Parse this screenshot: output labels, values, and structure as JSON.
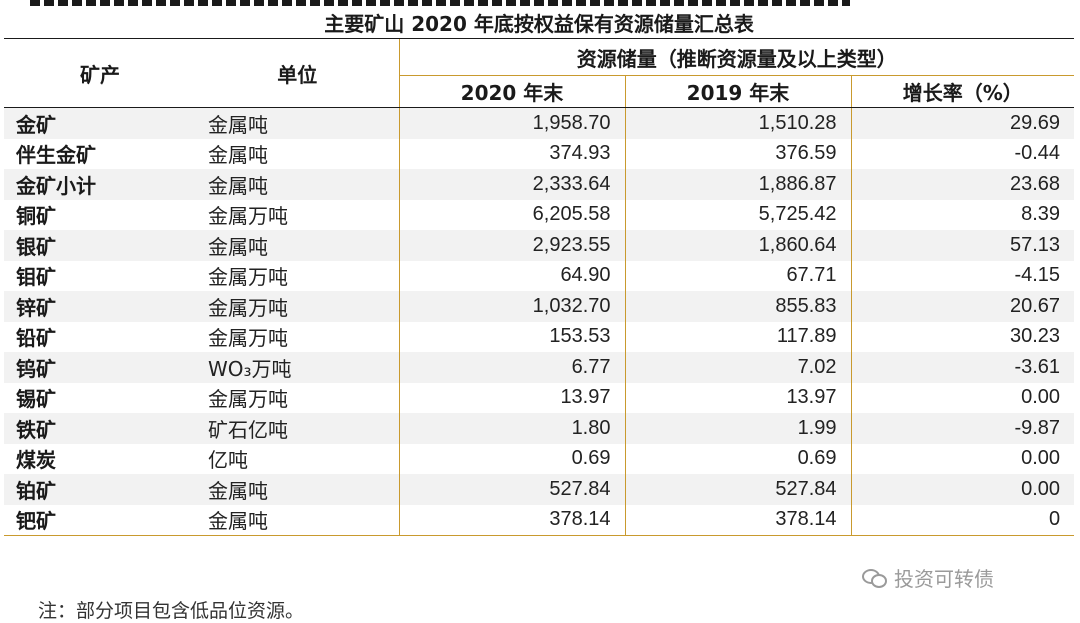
{
  "title": "主要矿山 2020 年底按权益保有资源储量汇总表",
  "header": {
    "product": "矿产",
    "unit": "单位",
    "group": "资源储量（推断资源量及以上类型）",
    "y2020": "2020 年末",
    "y2019": "2019 年末",
    "growth": "增长率（%）"
  },
  "rows": [
    {
      "product": "金矿",
      "unit": "金属吨",
      "v2020": "1,958.70",
      "v2019": "1,510.28",
      "growth": "29.69"
    },
    {
      "product": "伴生金矿",
      "unit": "金属吨",
      "v2020": "374.93",
      "v2019": "376.59",
      "growth": "-0.44"
    },
    {
      "product": "金矿小计",
      "unit": "金属吨",
      "v2020": "2,333.64",
      "v2019": "1,886.87",
      "growth": "23.68"
    },
    {
      "product": "铜矿",
      "unit": "金属万吨",
      "v2020": "6,205.58",
      "v2019": "5,725.42",
      "growth": "8.39"
    },
    {
      "product": "银矿",
      "unit": "金属吨",
      "v2020": "2,923.55",
      "v2019": "1,860.64",
      "growth": "57.13"
    },
    {
      "product": "钼矿",
      "unit": "金属万吨",
      "v2020": "64.90",
      "v2019": "67.71",
      "growth": "-4.15"
    },
    {
      "product": "锌矿",
      "unit": "金属万吨",
      "v2020": "1,032.70",
      "v2019": "855.83",
      "growth": "20.67"
    },
    {
      "product": "铅矿",
      "unit": "金属万吨",
      "v2020": "153.53",
      "v2019": "117.89",
      "growth": "30.23"
    },
    {
      "product": "钨矿",
      "unit": "WO₃万吨",
      "v2020": "6.77",
      "v2019": "7.02",
      "growth": "-3.61"
    },
    {
      "product": "锡矿",
      "unit": "金属万吨",
      "v2020": "13.97",
      "v2019": "13.97",
      "growth": "0.00"
    },
    {
      "product": "铁矿",
      "unit": "矿石亿吨",
      "v2020": "1.80",
      "v2019": "1.99",
      "growth": "-9.87"
    },
    {
      "product": "煤炭",
      "unit": "亿吨",
      "v2020": "0.69",
      "v2019": "0.69",
      "growth": "0.00"
    },
    {
      "product": "铂矿",
      "unit": "金属吨",
      "v2020": "527.84",
      "v2019": "527.84",
      "growth": "0.00"
    },
    {
      "product": "钯矿",
      "unit": "金属吨",
      "v2020": "378.14",
      "v2019": "378.14",
      "growth": "0"
    }
  ],
  "note": "注：部分项目包含低品位资源。",
  "watermark": "投资可转债"
}
